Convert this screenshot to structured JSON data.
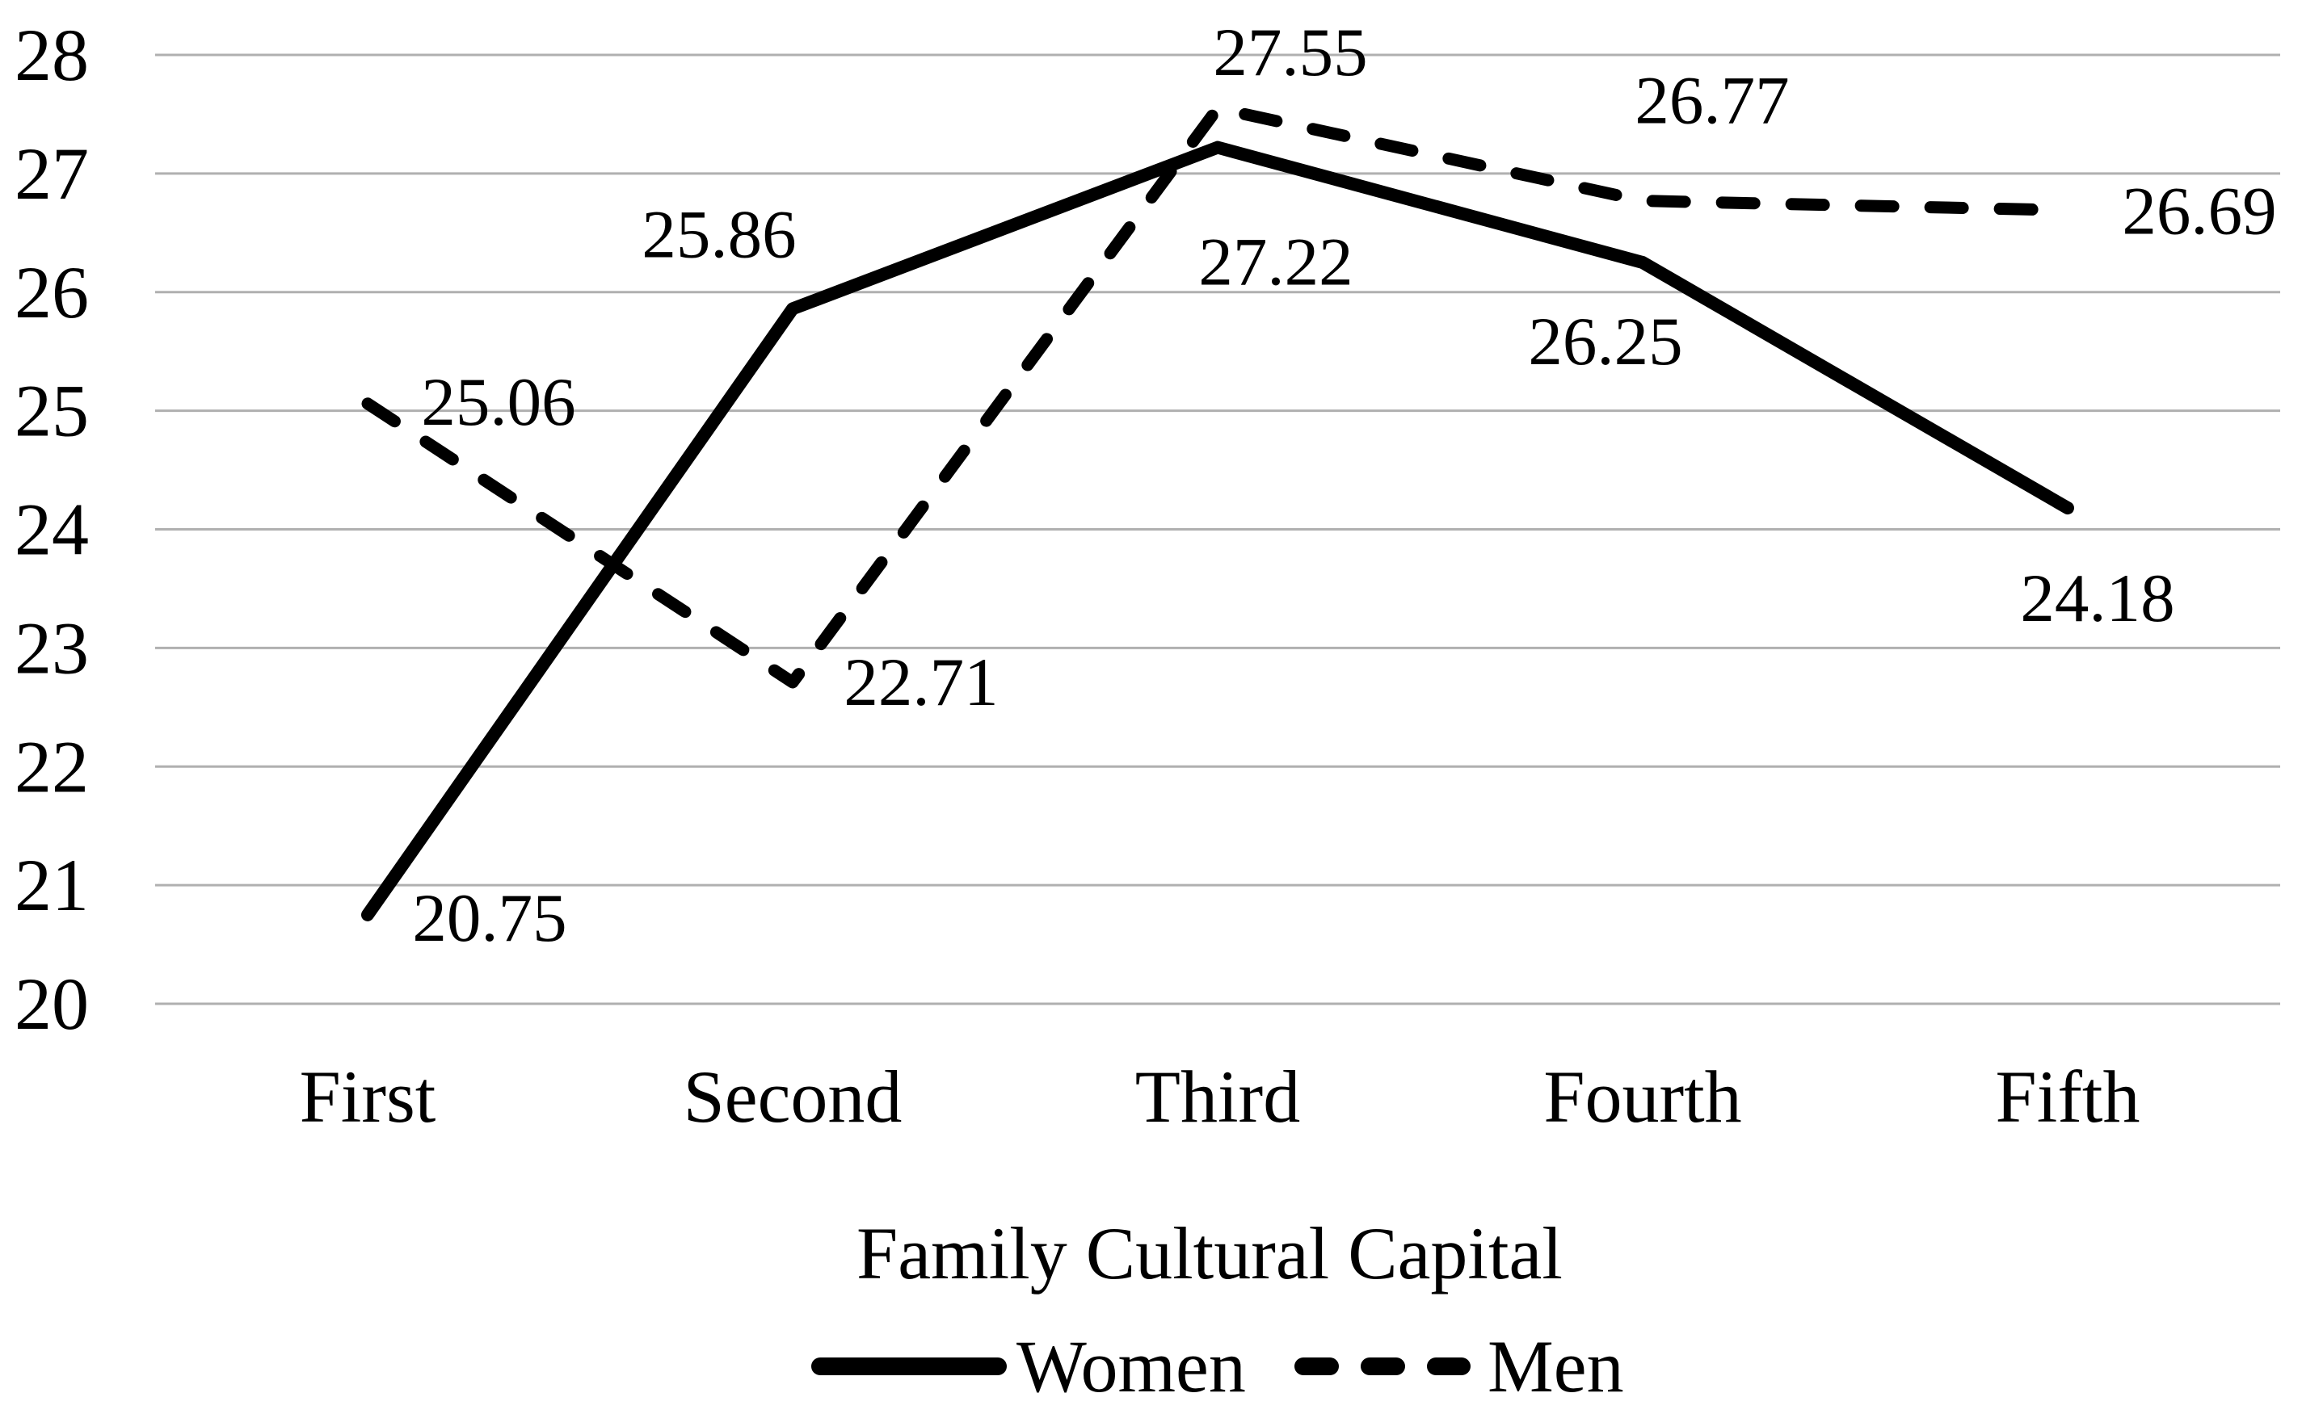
{
  "chart_data": {
    "type": "line",
    "title": "",
    "xlabel": "Family Cultural Capital",
    "ylabel": "",
    "categories": [
      "First",
      "Second",
      "Third",
      "Fourth",
      "Fifth"
    ],
    "series": [
      {
        "name": "Women",
        "style": "solid",
        "color": "#000000",
        "values": [
          20.75,
          25.86,
          27.22,
          26.25,
          24.18
        ],
        "data_labels": [
          "20.75",
          "25.86",
          "27.22",
          "26.25",
          "24.18"
        ]
      },
      {
        "name": "Men",
        "style": "dashed",
        "color": "#000000",
        "values": [
          25.06,
          22.71,
          27.55,
          26.77,
          26.69
        ],
        "data_labels": [
          "25.06",
          "22.71",
          "27.55",
          "26.77",
          "26.69"
        ]
      }
    ],
    "y_ticks": [
      20,
      21,
      22,
      23,
      24,
      25,
      26,
      27,
      28
    ],
    "ylim": [
      20,
      28
    ],
    "grid": "horizontal",
    "gridline_color": "#b0b0b0",
    "text_color": "#000000",
    "background": "#ffffff",
    "legend_position": "bottom",
    "legend": [
      {
        "label": "Women",
        "swatch": "solid-line"
      },
      {
        "label": "Men",
        "swatch": "dashed-line"
      }
    ]
  }
}
